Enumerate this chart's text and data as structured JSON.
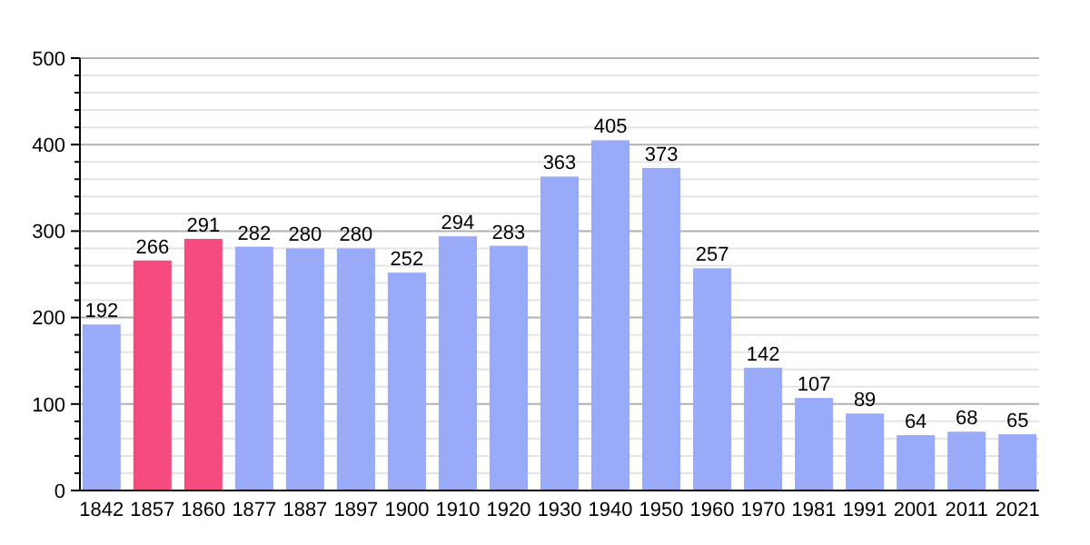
{
  "chart_data": {
    "type": "bar",
    "categories": [
      "1842",
      "1857",
      "1860",
      "1877",
      "1887",
      "1897",
      "1900",
      "1910",
      "1920",
      "1930",
      "1940",
      "1950",
      "1960",
      "1970",
      "1981",
      "1991",
      "2001",
      "2011",
      "2021"
    ],
    "values": [
      192,
      266,
      291,
      282,
      280,
      280,
      252,
      294,
      283,
      363,
      405,
      373,
      257,
      142,
      107,
      89,
      64,
      68,
      65
    ],
    "colors": [
      "#99aaf8",
      "#f54b7e",
      "#f54b7e",
      "#99aaf8",
      "#99aaf8",
      "#99aaf8",
      "#99aaf8",
      "#99aaf8",
      "#99aaf8",
      "#99aaf8",
      "#99aaf8",
      "#99aaf8",
      "#99aaf8",
      "#99aaf8",
      "#99aaf8",
      "#99aaf8",
      "#99aaf8",
      "#99aaf8",
      "#99aaf8"
    ],
    "ylim": [
      0,
      500
    ],
    "yticks": [
      0,
      {
        "value": 20,
        "label": null
      },
      {
        "value": 40,
        "label": null
      },
      {
        "value": 60,
        "label": null
      },
      {
        "value": 80,
        "label": null
      },
      100,
      {
        "value": 120,
        "label": null
      },
      {
        "value": 140,
        "label": null
      },
      {
        "value": 160,
        "label": null
      },
      {
        "value": 180,
        "label": null
      },
      200,
      {
        "value": 220,
        "label": null
      },
      {
        "value": 240,
        "label": null
      },
      {
        "value": 260,
        "label": null
      },
      {
        "value": 280,
        "label": null
      },
      300,
      {
        "value": 320,
        "label": null
      },
      {
        "value": 340,
        "label": null
      },
      {
        "value": 360,
        "label": null
      },
      {
        "value": 380,
        "label": null
      },
      400,
      {
        "value": 420,
        "label": null
      },
      {
        "value": 440,
        "label": null
      },
      {
        "value": 460,
        "label": null
      },
      {
        "value": 480,
        "label": null
      },
      500
    ],
    "grid": "y",
    "data_labels": true
  }
}
